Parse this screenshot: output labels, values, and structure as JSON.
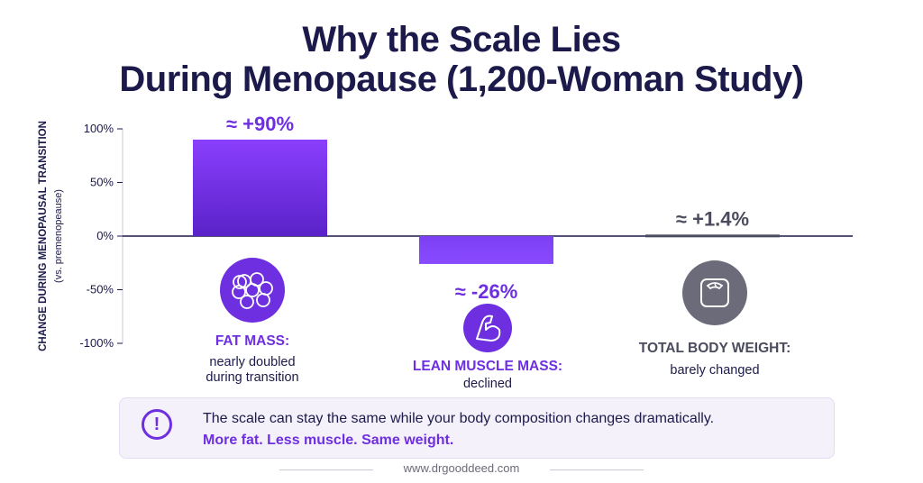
{
  "title": {
    "line1": "Why the Scale Lies",
    "line2": "During Menopause (1,200-Woman Study)"
  },
  "chart_data": {
    "type": "bar",
    "categories": [
      "FAT MASS",
      "LEAN MUSCLE MASS",
      "TOTAL BODY WEIGHT"
    ],
    "values": [
      90,
      -26,
      1.4
    ],
    "data_labels": [
      "≈ +90%",
      "≈ -26%",
      "≈ +1.4%"
    ],
    "ylabel": "CHANGE DURING MENOPAUSAL TRANSITION",
    "ylabel_sub": "(vs. premenopeause)",
    "ylim": [
      -100,
      100
    ],
    "yticks": [
      100,
      50,
      0,
      -50,
      -100
    ],
    "ytick_labels": [
      "100%",
      "50%",
      "0%",
      "-50%",
      "-100%"
    ],
    "grid": false,
    "bar_colors": [
      "#6d2fe0",
      "#7b3ff2",
      "#4b4b5e"
    ],
    "category_titles": [
      "FAT MASS:",
      "LEAN MUSCLE MASS:",
      "TOTAL BODY WEIGHT:"
    ],
    "category_descriptions": [
      [
        "nearly doubled",
        "during transition"
      ],
      [
        "declined"
      ],
      [
        "barely changed"
      ]
    ],
    "category_icons": [
      "fat-cells-icon",
      "flexed-arm-icon",
      "bathroom-scale-icon"
    ]
  },
  "callout": {
    "icon": "exclamation-icon",
    "line1": "The scale can stay the same while your body composition changes dramatically.",
    "line2": "More fat. Less muscle. Same weight."
  },
  "footer": "www.drgooddeed.com",
  "colors": {
    "navy": "#1b1a4a",
    "purple": "#6d2fe0",
    "gray": "#4b4b5e",
    "callout_bg": "#f4f1fb"
  }
}
